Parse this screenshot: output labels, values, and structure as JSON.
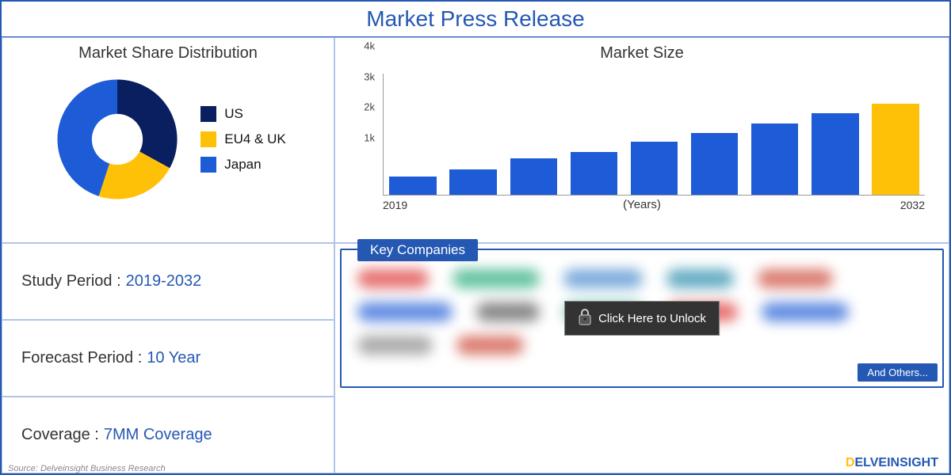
{
  "header": {
    "title": "Market Press Release"
  },
  "colors": {
    "primary": "#2458b3",
    "accent": "#ffc107",
    "darknavy": "#0a1f60",
    "blue": "#1e5bd6",
    "yellow": "#ffc107",
    "text": "#333333",
    "border": "#b0c4e8"
  },
  "pie": {
    "title": "Market Share Distribution",
    "inner_radius": 34,
    "outer_radius": 80,
    "slices": [
      {
        "label": "US",
        "color": "#0a1f60",
        "pct": 33
      },
      {
        "label": "EU4 & UK",
        "color": "#ffc107",
        "pct": 22
      },
      {
        "label": "Japan",
        "color": "#1e5bd6",
        "pct": 45
      }
    ],
    "legend_fontsize": 17
  },
  "barchart": {
    "title": "Market Size",
    "y_ticks": [
      "1k",
      "2k",
      "3k",
      "4k"
    ],
    "y_max": 4000,
    "x_start_label": "2019",
    "x_end_label": "2032",
    "x_axis_label": "(Years)",
    "bars": [
      {
        "value": 600,
        "color": "#1e5bd6"
      },
      {
        "value": 850,
        "color": "#1e5bd6"
      },
      {
        "value": 1200,
        "color": "#1e5bd6"
      },
      {
        "value": 1400,
        "color": "#1e5bd6"
      },
      {
        "value": 1750,
        "color": "#1e5bd6"
      },
      {
        "value": 2050,
        "color": "#1e5bd6"
      },
      {
        "value": 2350,
        "color": "#1e5bd6"
      },
      {
        "value": 2700,
        "color": "#1e5bd6"
      },
      {
        "value": 3000,
        "color": "#ffc107"
      }
    ]
  },
  "info": {
    "items": [
      {
        "label": "Study Period :",
        "value": "2019-2032"
      },
      {
        "label": "Forecast Period :",
        "value": "10 Year"
      },
      {
        "label": "Coverage :",
        "value": "7MM Coverage"
      }
    ]
  },
  "companies": {
    "header": "Key Companies",
    "unlock_label": "Click Here to Unlock",
    "and_others_label": "And Others...",
    "blob_colors": [
      "#d33",
      "#2a7",
      "#48c",
      "#28a",
      "#c43",
      "#1e5bd6",
      "#555",
      "#3a8",
      "#d33",
      "#1e5bd6",
      "#888",
      "#c43"
    ],
    "blob_widths": [
      90,
      110,
      100,
      85,
      95,
      120,
      80,
      100,
      90,
      110,
      95,
      85
    ]
  },
  "footer": {
    "source": "Source: Delveinsight Business Research"
  },
  "brand": {
    "part1": "D",
    "part2": "ELVEINSIGHT"
  }
}
